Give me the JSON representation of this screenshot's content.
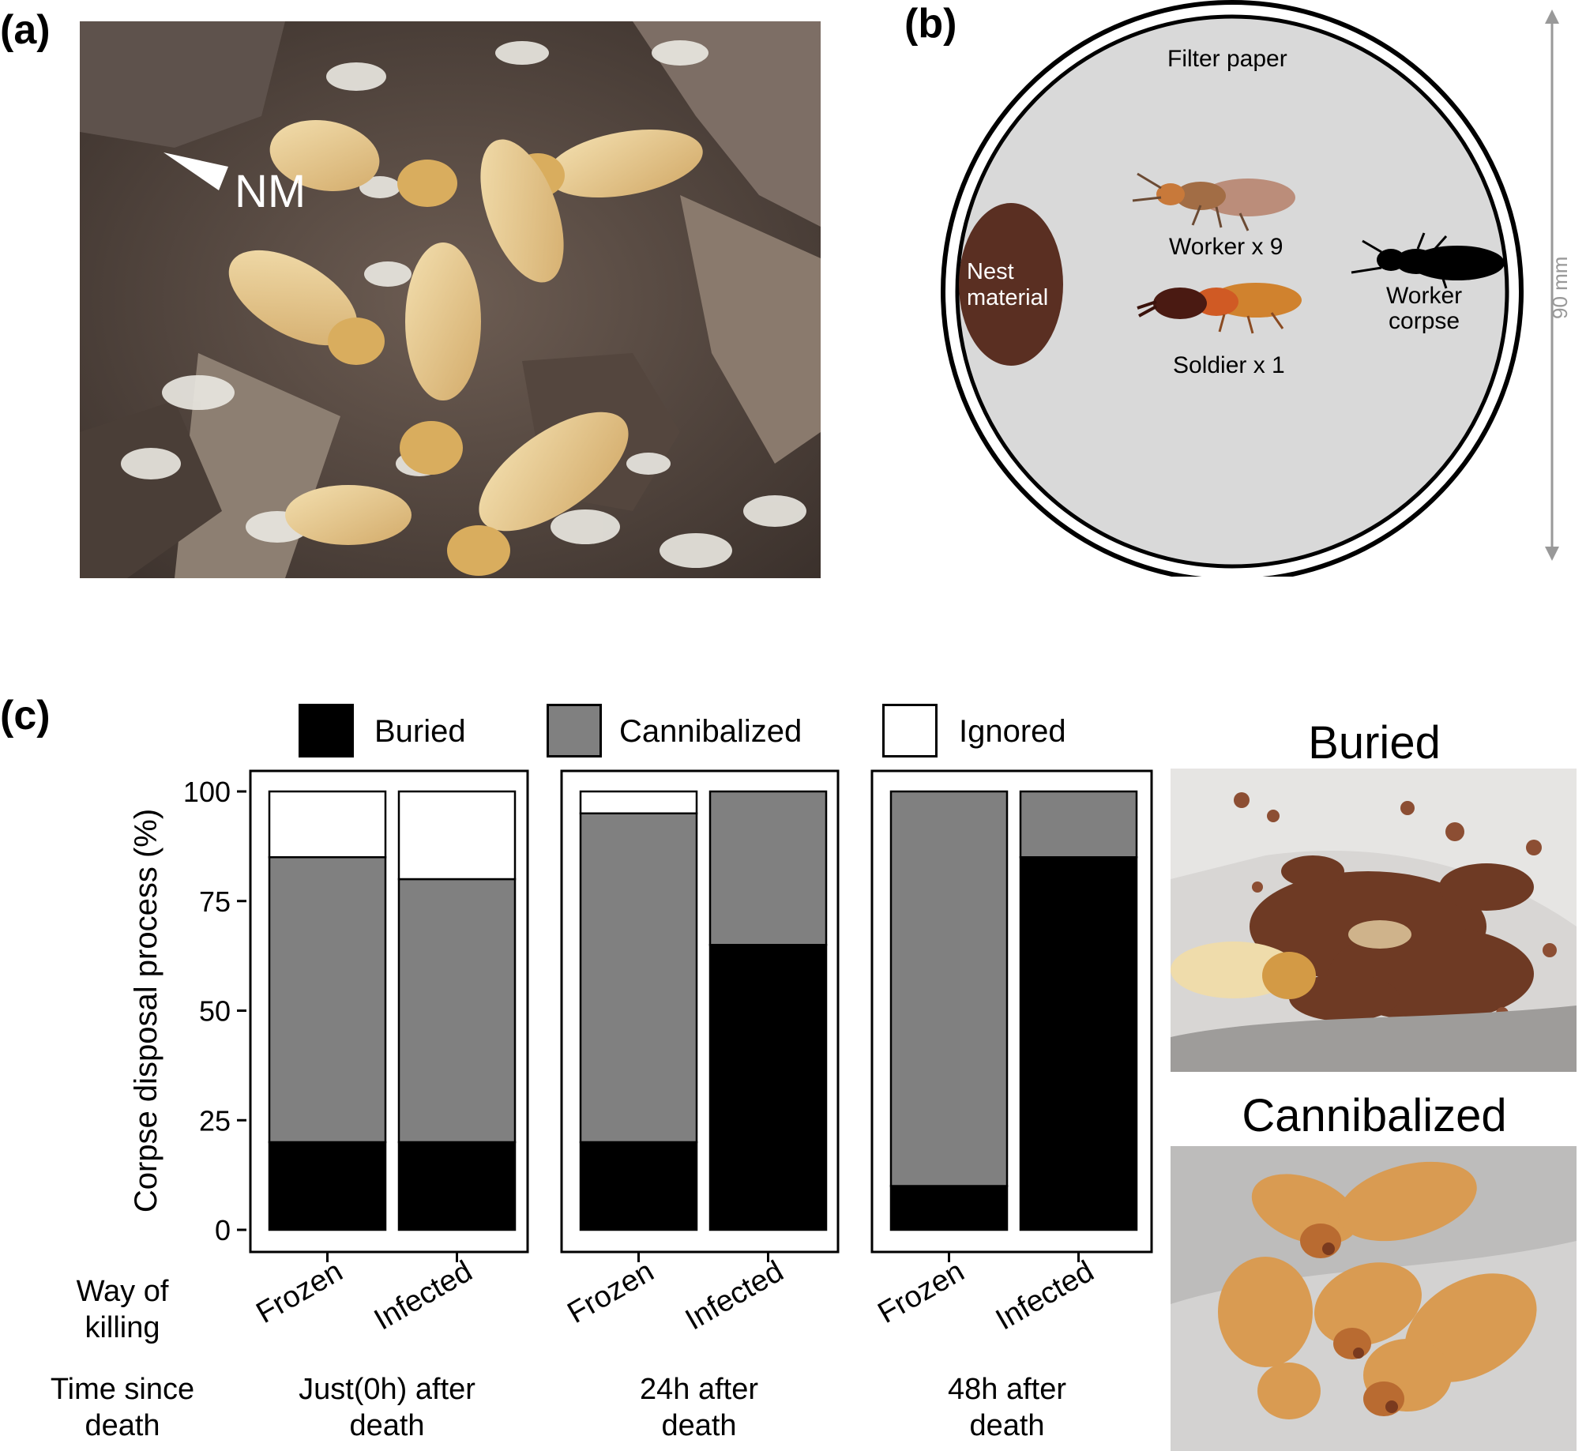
{
  "panels": {
    "a": {
      "label": "(a)",
      "annotation": "NM"
    },
    "b": {
      "label": "(b)",
      "filter_paper": "Filter paper",
      "nest_material_1": "Nest",
      "nest_material_2": "material",
      "worker": "Worker x 9",
      "soldier": "Soldier x 1",
      "corpse_1": "Worker",
      "corpse_2": "corpse",
      "scale": "90 mm"
    },
    "c": {
      "label": "(c)",
      "legend": [
        "Buried",
        "Cannibalized",
        "Ignored"
      ],
      "photo_titles": [
        "Buried",
        "Cannibalized"
      ],
      "way_of_killing_1": "Way of",
      "way_of_killing_2": "killing",
      "time_since_death_1": "Time since",
      "time_since_death_2": "death",
      "groups": [
        {
          "line1": "Just(0h) after",
          "line2": "death"
        },
        {
          "line1": "24h after",
          "line2": "death"
        },
        {
          "line1": "48h after",
          "line2": "death"
        }
      ]
    }
  },
  "chart_data": {
    "type": "bar",
    "stacked": true,
    "ylabel": "Corpse disposal process (%)",
    "ylim": [
      0,
      100
    ],
    "yticks": [
      0,
      25,
      50,
      75,
      100
    ],
    "facets": [
      "Just(0h) after death",
      "24h after death",
      "48h after death"
    ],
    "categories": [
      "Frozen",
      "Infected"
    ],
    "series": [
      {
        "name": "Buried",
        "color": "#000000",
        "values": [
          [
            20,
            20
          ],
          [
            20,
            65
          ],
          [
            10,
            85
          ]
        ]
      },
      {
        "name": "Cannibalized",
        "color": "#808080",
        "values": [
          [
            65,
            60
          ],
          [
            75,
            35
          ],
          [
            90,
            15
          ]
        ]
      },
      {
        "name": "Ignored",
        "color": "#ffffff",
        "values": [
          [
            15,
            20
          ],
          [
            5,
            0
          ],
          [
            0,
            0
          ]
        ]
      }
    ]
  }
}
